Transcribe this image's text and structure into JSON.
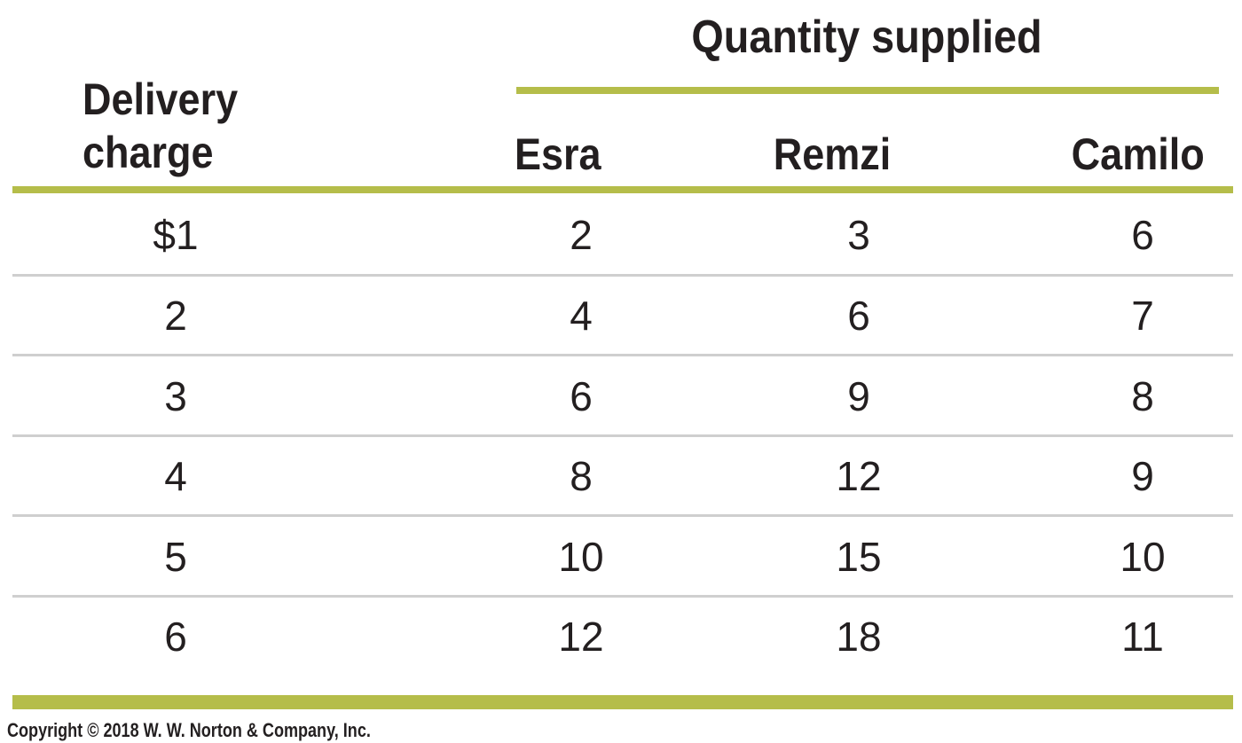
{
  "chart_data": {
    "type": "table",
    "group_header": "Quantity supplied",
    "row_header": [
      "Delivery",
      "charge"
    ],
    "columns": [
      "Esra",
      "Remzi",
      "Camilo"
    ],
    "rows": [
      {
        "charge": "$1",
        "values": [
          2,
          3,
          6
        ]
      },
      {
        "charge": "2",
        "values": [
          4,
          6,
          7
        ]
      },
      {
        "charge": "3",
        "values": [
          6,
          9,
          8
        ]
      },
      {
        "charge": "4",
        "values": [
          8,
          12,
          9
        ]
      },
      {
        "charge": "5",
        "values": [
          10,
          15,
          10
        ]
      },
      {
        "charge": "6",
        "values": [
          12,
          18,
          11
        ]
      }
    ]
  },
  "footer": {
    "copyright": "Copyright © 2018 W. W. Norton & Company, Inc."
  },
  "colors": {
    "accent": "#b5bd4a",
    "divider": "#cfcfcf",
    "text": "#231f20"
  }
}
